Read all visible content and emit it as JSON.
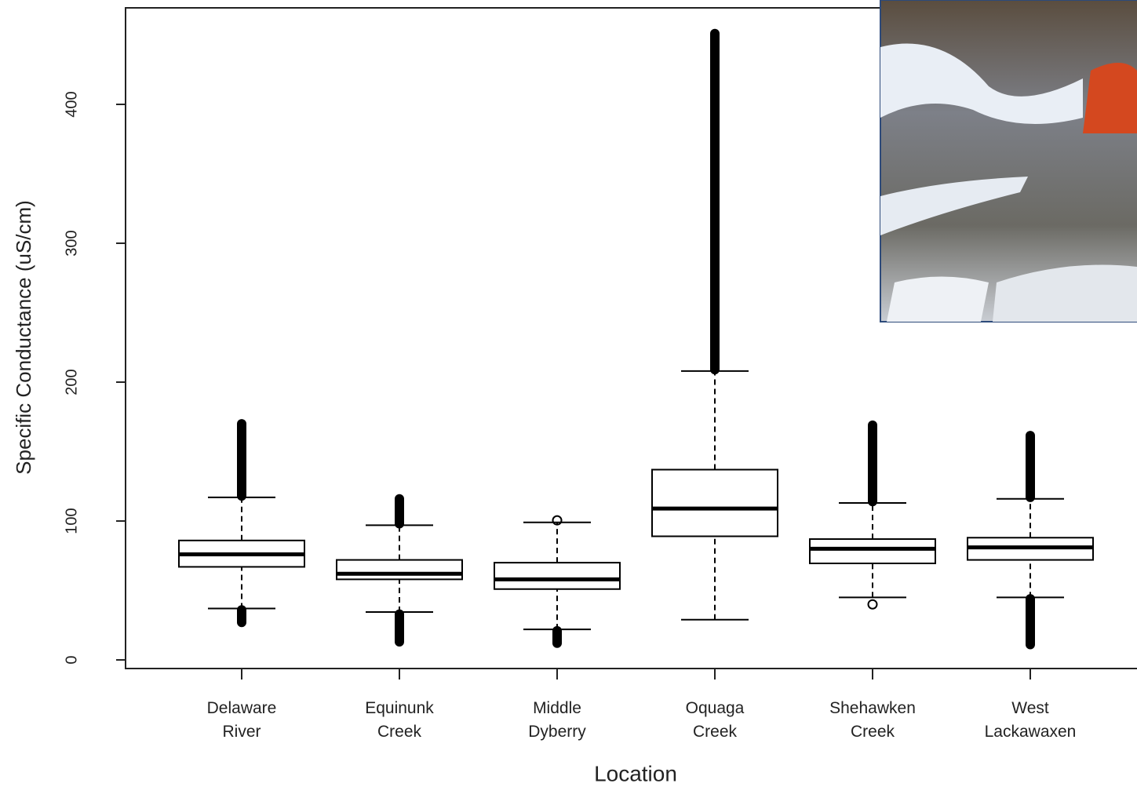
{
  "chart_data": {
    "type": "box",
    "x_label": "Location",
    "y_label": "Specific Conductance (uS/cm)",
    "categories": [
      "Delaware River",
      "Equinunk Creek",
      "Middle Dyberry",
      "Oquaga Creek",
      "Shehawken Creek",
      "West Lackawaxen"
    ],
    "boxes": [
      {
        "low": 37,
        "q1": 67,
        "median": 76,
        "q3": 86,
        "high": 117,
        "outlier_ranges": [
          [
            118,
            170
          ],
          [
            27,
            36
          ]
        ]
      },
      {
        "low": 34.5,
        "q1": 58,
        "median": 62,
        "q3": 72,
        "high": 97,
        "outlier_ranges": [
          [
            98,
            116
          ],
          [
            13,
            33
          ]
        ]
      },
      {
        "low": 22,
        "q1": 51,
        "median": 58,
        "q3": 70,
        "high": 99,
        "outliers": [
          100.5
        ],
        "outlier_ranges": [
          [
            12,
            21
          ]
        ]
      },
      {
        "low": 29,
        "q1": 89,
        "median": 109,
        "q3": 137,
        "high": 208,
        "outlier_ranges": [
          [
            209,
            451
          ]
        ]
      },
      {
        "low": 45,
        "q1": 69.5,
        "median": 80,
        "q3": 87,
        "high": 113,
        "outliers": [
          40
        ],
        "outlier_ranges": [
          [
            114,
            169
          ]
        ]
      },
      {
        "low": 45,
        "q1": 72,
        "median": 81,
        "q3": 88,
        "high": 116,
        "outlier_ranges": [
          [
            117,
            161.5
          ],
          [
            11,
            44
          ]
        ]
      }
    ],
    "color": "#000000",
    "ylim": [
      -6.2,
      469.5
    ],
    "yticks": [
      0,
      100,
      200,
      300,
      400
    ]
  }
}
